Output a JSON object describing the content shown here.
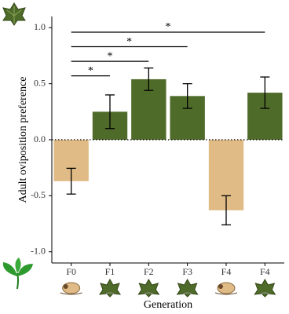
{
  "chart_data": {
    "type": "bar",
    "y_label": "Adult oviposition preference",
    "x_label": "Generation",
    "categories": [
      "F0",
      "F1",
      "F2",
      "F3",
      "F4",
      "F4"
    ],
    "values": [
      -0.37,
      0.25,
      0.54,
      0.39,
      -0.63,
      0.42
    ],
    "errors": [
      0.115,
      0.15,
      0.1,
      0.11,
      0.13,
      0.14
    ],
    "colors": [
      "#e0bb86",
      "#4f6b2a",
      "#4f6b2a",
      "#4f6b2a",
      "#e0bb86",
      "#4f6b2a"
    ],
    "ylim": [
      -1.1,
      1.1
    ],
    "yticks": [
      {
        "value": -1,
        "label": "-1.0"
      },
      -0.5,
      {
        "value": 0,
        "label": "0.0"
      },
      0.5,
      {
        "value": 1,
        "label": "1.0"
      }
    ],
    "reference_line": 0,
    "annotations": [
      {
        "from": 0,
        "to": 1,
        "y": 0.57,
        "label": "*"
      },
      {
        "from": 0,
        "to": 2,
        "y": 0.7,
        "label": "*"
      },
      {
        "from": 0,
        "to": 3,
        "y": 0.83,
        "label": "*"
      },
      {
        "from": 0,
        "to": 5,
        "y": 0.96,
        "label": "*"
      }
    ]
  }
}
